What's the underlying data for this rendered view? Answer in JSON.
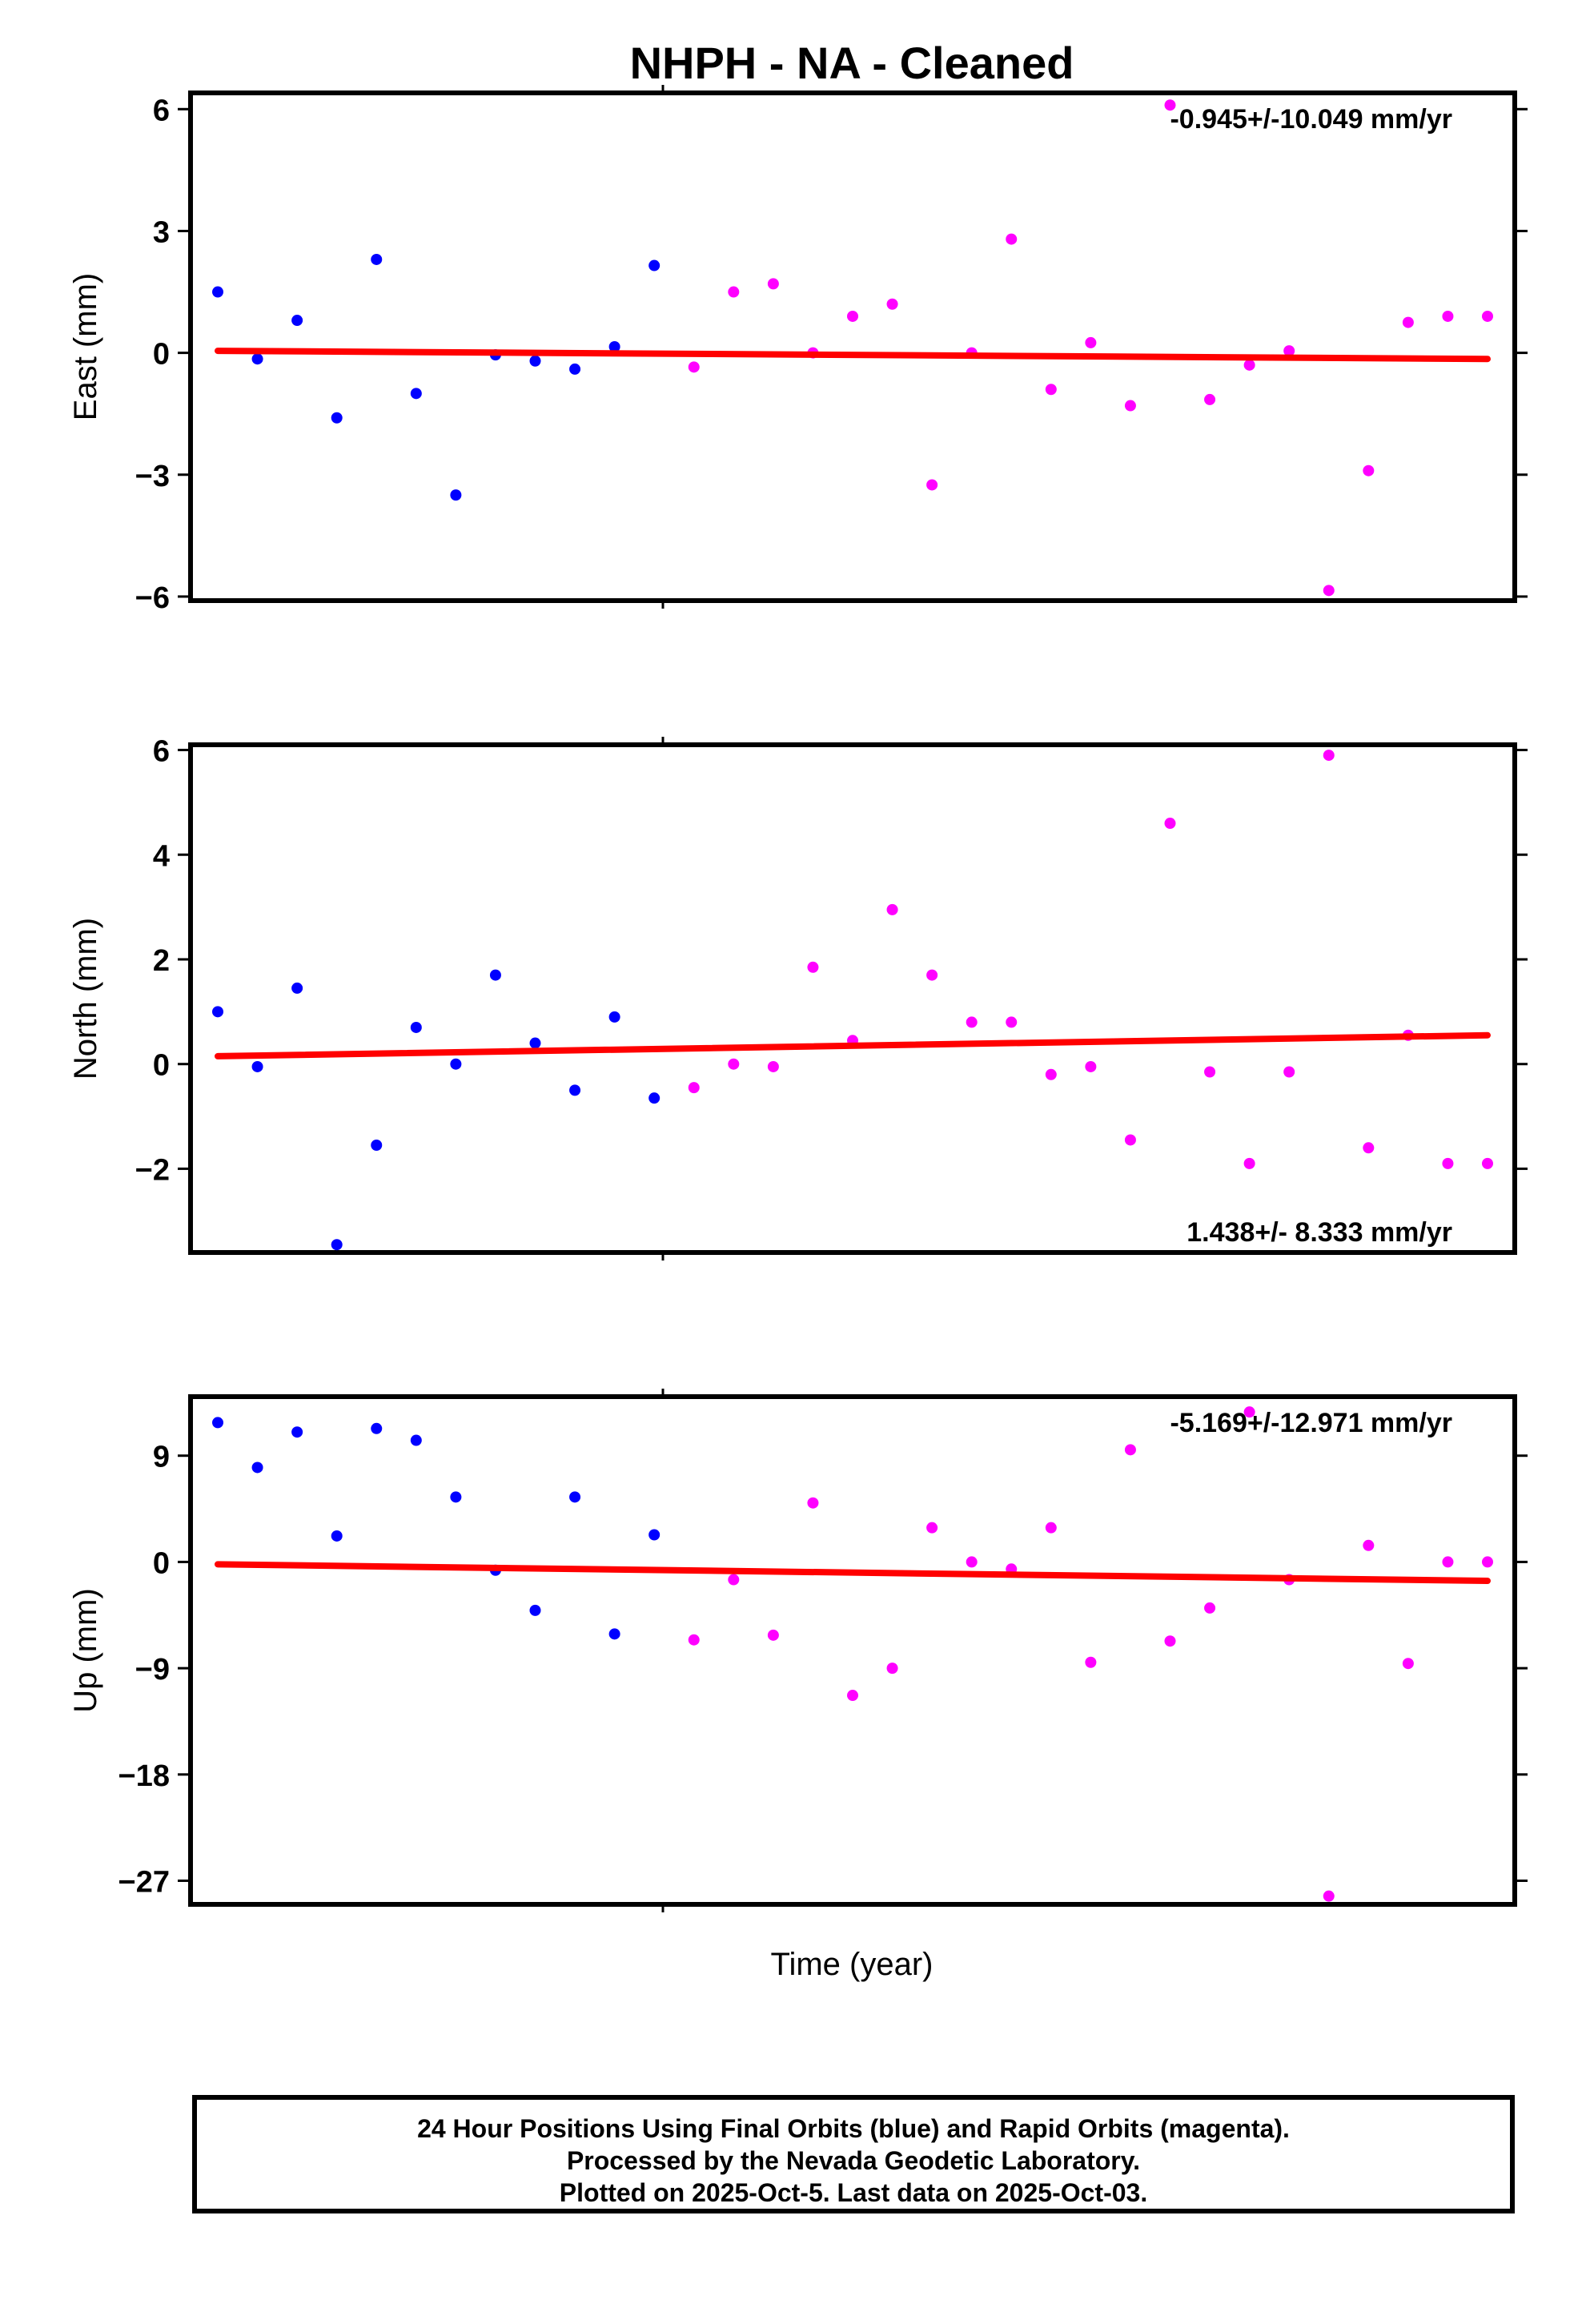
{
  "chart_data": {
    "title": "NHPH  - NA - Cleaned",
    "xlabel": "Time (year)",
    "colors": {
      "final": "#0000ff",
      "rapid": "#ff00ff",
      "trend": "#ff0000",
      "frame": "#000000"
    },
    "panels": [
      {
        "id": "east",
        "type": "scatter",
        "ylabel": "East (mm)",
        "ylim": [
          -6.1,
          6.4
        ],
        "yticks": [
          6,
          3,
          0,
          -3,
          -6
        ],
        "yticklabels": [
          "6",
          "3",
          "0",
          "−3",
          "−6"
        ],
        "rate_label": "-0.945+/-10.049 mm/yr",
        "rate_position": "top-right",
        "trend": {
          "start": 0.05,
          "end": -0.15
        },
        "series": [
          {
            "kind": "final",
            "x": [
              1,
              2,
              3,
              4,
              5,
              6,
              7,
              8,
              9,
              10,
              11,
              12
            ],
            "values": [
              1.5,
              -0.15,
              0.8,
              -1.6,
              2.3,
              -1.0,
              -3.5,
              -0.05,
              -0.2,
              -0.4,
              0.15,
              2.15
            ]
          },
          {
            "kind": "rapid",
            "x": [
              13,
              14,
              15,
              16,
              17,
              18,
              19,
              20,
              21,
              22,
              23,
              24,
              25,
              26,
              27,
              28,
              29,
              30,
              31,
              32,
              33
            ],
            "values": [
              -0.35,
              1.5,
              1.7,
              0.0,
              0.9,
              1.2,
              -3.25,
              0.0,
              2.8,
              -0.9,
              0.25,
              -1.3,
              6.1,
              -1.15,
              -0.3,
              0.05,
              -5.85,
              -2.9,
              0.75,
              0.9,
              0.9
            ]
          }
        ]
      },
      {
        "id": "north",
        "type": "scatter",
        "ylabel": "North (mm)",
        "ylim": [
          -3.6,
          6.1
        ],
        "yticks": [
          6,
          4,
          2,
          0,
          -2
        ],
        "yticklabels": [
          "6",
          "4",
          "2",
          "0",
          "−2"
        ],
        "rate_label": "1.438+/- 8.333 mm/yr",
        "rate_position": "bottom-right",
        "trend": {
          "start": 0.15,
          "end": 0.55
        },
        "series": [
          {
            "kind": "final",
            "x": [
              1,
              2,
              3,
              4,
              5,
              6,
              7,
              8,
              9,
              10,
              11,
              12
            ],
            "values": [
              1.0,
              -0.05,
              1.45,
              -3.45,
              -1.55,
              0.7,
              0.0,
              1.7,
              0.4,
              -0.5,
              0.9,
              -0.65
            ]
          },
          {
            "kind": "rapid",
            "x": [
              13,
              14,
              15,
              16,
              17,
              18,
              19,
              20,
              21,
              22,
              23,
              24,
              25,
              26,
              27,
              28,
              29,
              30,
              31,
              32,
              33
            ],
            "values": [
              -0.45,
              0.0,
              -0.05,
              1.85,
              0.45,
              2.95,
              1.7,
              0.8,
              0.8,
              -0.2,
              -0.05,
              -1.45,
              4.6,
              -0.15,
              -1.9,
              -0.15,
              5.9,
              -1.6,
              0.55,
              -1.9,
              -1.9
            ]
          }
        ]
      },
      {
        "id": "up",
        "type": "scatter",
        "ylabel": "Up (mm)",
        "ylim": [
          -29,
          14
        ],
        "yticks": [
          9,
          0,
          -9,
          -18,
          -27
        ],
        "yticklabels": [
          "9",
          "0",
          "−9",
          "−18",
          "−27"
        ],
        "rate_label": "-5.169+/-12.971 mm/yr",
        "rate_position": "top-right",
        "trend": {
          "start": -0.2,
          "end": -1.6
        },
        "series": [
          {
            "kind": "final",
            "x": [
              1,
              2,
              3,
              4,
              5,
              6,
              7,
              8,
              9,
              10,
              11,
              12
            ],
            "values": [
              11.8,
              8.0,
              11.0,
              2.2,
              11.3,
              10.3,
              5.5,
              -0.7,
              -4.1,
              5.5,
              -6.1,
              2.3
            ]
          },
          {
            "kind": "rapid",
            "x": [
              13,
              14,
              15,
              16,
              17,
              18,
              19,
              20,
              21,
              22,
              23,
              24,
              25,
              26,
              27,
              28,
              29,
              30,
              31,
              32,
              33
            ],
            "values": [
              -6.6,
              -1.5,
              -6.2,
              5.0,
              -11.3,
              -9.0,
              2.9,
              0.0,
              -0.6,
              2.9,
              -8.5,
              9.5,
              -6.7,
              -3.9,
              12.7,
              -1.5,
              -28.3,
              1.4,
              -8.6,
              0.0,
              0.0
            ]
          }
        ]
      }
    ]
  },
  "footer": {
    "line1": "24 Hour Positions Using Final Orbits (blue) and Rapid Orbits (magenta).",
    "line2": "Processed by the Nevada Geodetic Laboratory.",
    "line3": "Plotted on 2025-Oct-5. Last data on 2025-Oct-03."
  }
}
